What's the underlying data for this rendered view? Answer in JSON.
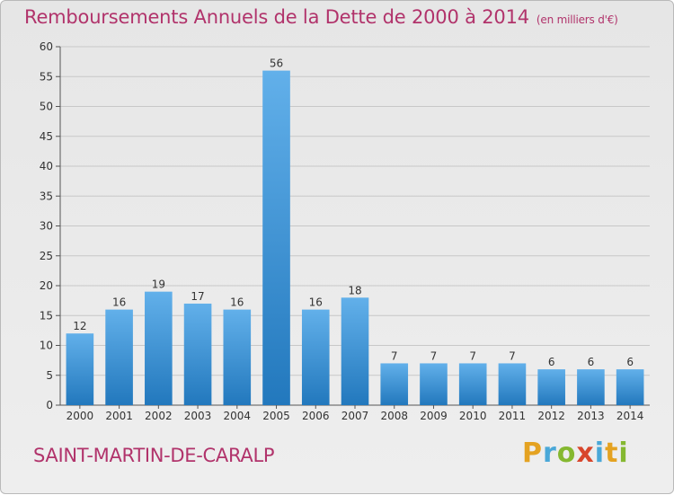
{
  "title": "Remboursements Annuels de la Dette de 2000 à 2014",
  "subtitle": "(en milliers d'€)",
  "commune": "SAINT-MARTIN-DE-CARALP",
  "brand": {
    "letters": [
      "P",
      "r",
      "o",
      "x",
      "i",
      "t",
      "i"
    ],
    "colors": [
      "#e4a221",
      "#4aa8d8",
      "#85b830",
      "#d8462c",
      "#4aa8d8",
      "#e4a221",
      "#85b830"
    ]
  },
  "colors": {
    "bar_top": "#62b0ea",
    "bar_bottom": "#2278bd",
    "title": "#b1336b"
  },
  "chart_data": {
    "type": "bar",
    "title": "Remboursements Annuels de la Dette de 2000 à 2014",
    "subtitle": "(en milliers d'€)",
    "categories": [
      "2000",
      "2001",
      "2002",
      "2003",
      "2004",
      "2005",
      "2006",
      "2007",
      "2008",
      "2009",
      "2010",
      "2011",
      "2012",
      "2013",
      "2014"
    ],
    "values": [
      12,
      16,
      19,
      17,
      16,
      56,
      16,
      18,
      7,
      7,
      7,
      7,
      6,
      6,
      6
    ],
    "ylim": [
      0,
      60
    ],
    "yticks": [
      0,
      5,
      10,
      15,
      20,
      25,
      30,
      35,
      40,
      45,
      50,
      55,
      60
    ],
    "grid": true,
    "xlabel": "",
    "ylabel": ""
  }
}
